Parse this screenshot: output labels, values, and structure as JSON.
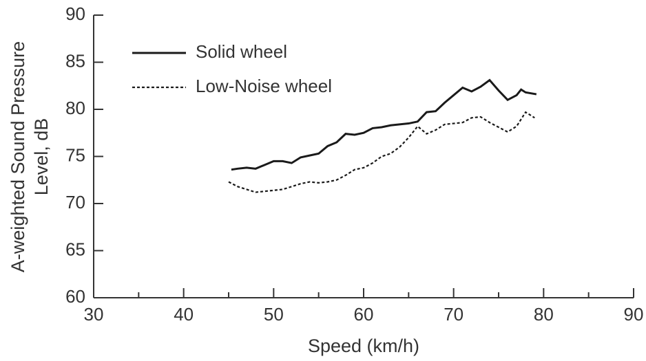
{
  "chart_data": {
    "type": "line",
    "xlabel": "Speed (km/h)",
    "ylabel": [
      "A-weighted Sound Pressure",
      "Level, dB"
    ],
    "xlim": [
      30,
      90
    ],
    "xticks": [
      30,
      40,
      50,
      60,
      70,
      80,
      90
    ],
    "ylim": [
      60,
      90
    ],
    "yticks": [
      60,
      65,
      70,
      75,
      80,
      85,
      90
    ],
    "grid": false,
    "legend": "upper left",
    "series": [
      {
        "name": "Solid wheel",
        "color": "#1a1a1a",
        "dash": "solid",
        "x": [
          45.3,
          46,
          47,
          48,
          49,
          50,
          51,
          52,
          53,
          54,
          55,
          56,
          57,
          58,
          59,
          60,
          61,
          62,
          63,
          64,
          65,
          66,
          67,
          68,
          69,
          70,
          71,
          72,
          73,
          74,
          75,
          76,
          77,
          77.5,
          78,
          79.2
        ],
        "values": [
          73.6,
          73.7,
          73.8,
          73.7,
          74.1,
          74.5,
          74.5,
          74.3,
          74.9,
          75.1,
          75.3,
          76.1,
          76.5,
          77.4,
          77.3,
          77.5,
          78.0,
          78.1,
          78.3,
          78.4,
          78.5,
          78.7,
          79.7,
          79.8,
          80.7,
          81.5,
          82.3,
          81.9,
          82.4,
          83.1,
          82.0,
          81.0,
          81.5,
          82.1,
          81.8,
          81.6
        ]
      },
      {
        "name": "Low-Noise wheel",
        "color": "#1a1a1a",
        "dash": "dotted",
        "x": [
          45,
          46,
          47,
          48,
          49,
          50,
          51,
          52,
          53,
          54,
          55,
          56,
          57,
          58,
          59,
          60,
          61,
          62,
          63,
          64,
          65,
          66,
          67,
          68,
          69,
          70,
          71,
          72,
          73,
          74,
          75,
          76,
          77,
          78,
          79
        ],
        "values": [
          72.3,
          71.8,
          71.5,
          71.2,
          71.3,
          71.4,
          71.5,
          71.8,
          72.1,
          72.3,
          72.2,
          72.3,
          72.5,
          73.0,
          73.6,
          73.8,
          74.3,
          75.0,
          75.3,
          76.0,
          77.0,
          78.2,
          77.4,
          77.8,
          78.4,
          78.5,
          78.6,
          79.1,
          79.2,
          78.6,
          78.1,
          77.6,
          78.2,
          79.7,
          79.1
        ]
      }
    ]
  }
}
